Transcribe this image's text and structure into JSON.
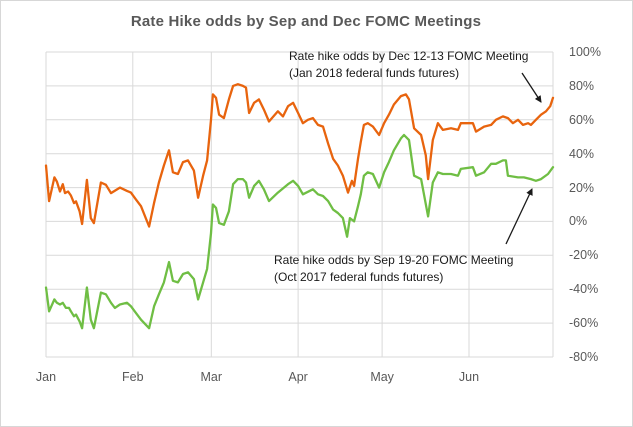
{
  "title": "Rate Hike odds by Sep and Dec FOMC Meetings",
  "chart_data": {
    "type": "line",
    "title": "Rate Hike odds by Sep and Dec FOMC Meetings",
    "xlabel": "",
    "ylabel": "",
    "grid": true,
    "legend": "none (series labeled by arrow annotations)",
    "colors": {
      "grid": "#d9d9d9",
      "axis_text": "#595959",
      "title_text": "#595959",
      "annotation_text": "#1a1a1a"
    },
    "x_axis": {
      "unit": "days from Jan 1",
      "xlim": [
        0,
        181
      ],
      "ticks": [
        {
          "label": "Jan",
          "day": 0
        },
        {
          "label": "Feb",
          "day": 31
        },
        {
          "label": "Mar",
          "day": 59
        },
        {
          "label": "Apr",
          "day": 90
        },
        {
          "label": "May",
          "day": 120
        },
        {
          "label": "Jun",
          "day": 151
        }
      ]
    },
    "y_axis": {
      "side": "right",
      "ylim": [
        -80,
        100
      ],
      "ticks": [
        {
          "label": "100%",
          "value": 100
        },
        {
          "label": "80%",
          "value": 80
        },
        {
          "label": "60%",
          "value": 60
        },
        {
          "label": "40%",
          "value": 40
        },
        {
          "label": "20%",
          "value": 20
        },
        {
          "label": "0%",
          "value": 0
        },
        {
          "label": "-20%",
          "value": -20
        },
        {
          "label": "-40%",
          "value": -40
        },
        {
          "label": "-60%",
          "value": -60
        },
        {
          "label": "-80%",
          "value": -80
        }
      ]
    },
    "series": [
      {
        "name": "Rate hike odds by Dec 12-13 FOMC Meeting (Jan 2018 federal funds futures)",
        "color": "#e8640e",
        "points": [
          [
            0,
            33
          ],
          [
            1.1,
            12
          ],
          [
            3,
            26
          ],
          [
            3.9,
            23.5
          ],
          [
            5,
            17.7
          ],
          [
            6,
            22
          ],
          [
            6.8,
            16.7
          ],
          [
            7.9,
            17.7
          ],
          [
            8.9,
            15.3
          ],
          [
            10,
            10.8
          ],
          [
            10.7,
            11.8
          ],
          [
            12,
            6
          ],
          [
            12.9,
            -1.5
          ],
          [
            14.6,
            24.5
          ],
          [
            16,
            2
          ],
          [
            17.1,
            -1
          ],
          [
            19.6,
            23
          ],
          [
            21.4,
            21.6
          ],
          [
            23.2,
            16.7
          ],
          [
            26.4,
            20
          ],
          [
            28.9,
            18
          ],
          [
            30.3,
            17
          ],
          [
            32.1,
            13
          ],
          [
            33.9,
            9
          ],
          [
            36.8,
            -3
          ],
          [
            38.6,
            11
          ],
          [
            40.3,
            23
          ],
          [
            42.1,
            33
          ],
          [
            43.9,
            42
          ],
          [
            45.3,
            29
          ],
          [
            47.1,
            28
          ],
          [
            48.9,
            35
          ],
          [
            50.7,
            36
          ],
          [
            52.8,
            30
          ],
          [
            54.3,
            14
          ],
          [
            56.1,
            27
          ],
          [
            57.5,
            36
          ],
          [
            58.9,
            60
          ],
          [
            59.6,
            75
          ],
          [
            60.7,
            73
          ],
          [
            61.8,
            63
          ],
          [
            63.5,
            61
          ],
          [
            65.3,
            72
          ],
          [
            66.8,
            80
          ],
          [
            68.5,
            81
          ],
          [
            70.3,
            80
          ],
          [
            71.4,
            79
          ],
          [
            72.5,
            64
          ],
          [
            74.3,
            70
          ],
          [
            76,
            72
          ],
          [
            77.8,
            66
          ],
          [
            79.6,
            59
          ],
          [
            82.8,
            65
          ],
          [
            84.6,
            62
          ],
          [
            86.4,
            68
          ],
          [
            88.2,
            70
          ],
          [
            90,
            64
          ],
          [
            91.7,
            58
          ],
          [
            93.5,
            60
          ],
          [
            95.3,
            61
          ],
          [
            97.1,
            57
          ],
          [
            98.9,
            56
          ],
          [
            100.7,
            46
          ],
          [
            102.5,
            37
          ],
          [
            104.2,
            33
          ],
          [
            106,
            27
          ],
          [
            107.8,
            17
          ],
          [
            109.2,
            24
          ],
          [
            110,
            21
          ],
          [
            111.4,
            37
          ],
          [
            112.4,
            47
          ],
          [
            113.5,
            57
          ],
          [
            114.9,
            58
          ],
          [
            116.7,
            56
          ],
          [
            118.9,
            51
          ],
          [
            120.7,
            58
          ],
          [
            122.4,
            63
          ],
          [
            124.2,
            69
          ],
          [
            126.7,
            74
          ],
          [
            128.5,
            75
          ],
          [
            129.6,
            72
          ],
          [
            131.4,
            55
          ],
          [
            133.9,
            51
          ],
          [
            135.6,
            39
          ],
          [
            136.4,
            25
          ],
          [
            138.1,
            48
          ],
          [
            139.9,
            58
          ],
          [
            141.7,
            54
          ],
          [
            144.6,
            55
          ],
          [
            147.1,
            54
          ],
          [
            148.1,
            58
          ],
          [
            152.4,
            58
          ],
          [
            153.5,
            53
          ],
          [
            156.4,
            56
          ],
          [
            158.9,
            57
          ],
          [
            160.6,
            60
          ],
          [
            163.1,
            62
          ],
          [
            164.9,
            61
          ],
          [
            166.7,
            58
          ],
          [
            168.5,
            60
          ],
          [
            170.3,
            57
          ],
          [
            172.1,
            58
          ],
          [
            173.1,
            57
          ],
          [
            174.9,
            60
          ],
          [
            176.7,
            63
          ],
          [
            178.5,
            65
          ],
          [
            180,
            68
          ],
          [
            181,
            73
          ]
        ]
      },
      {
        "name": "Rate hike odds by Sep 19-20 FOMC Meeting (Oct 2017 federal funds futures)",
        "color": "#6fbe44",
        "points": [
          [
            0,
            -39
          ],
          [
            1.1,
            -53
          ],
          [
            3,
            -46
          ],
          [
            3.9,
            -48
          ],
          [
            5,
            -49
          ],
          [
            6,
            -48
          ],
          [
            7.1,
            -51
          ],
          [
            8.2,
            -51
          ],
          [
            8.9,
            -53
          ],
          [
            10,
            -56
          ],
          [
            10.7,
            -55
          ],
          [
            12,
            -59
          ],
          [
            12.9,
            -63
          ],
          [
            14.6,
            -39
          ],
          [
            16,
            -58
          ],
          [
            17.1,
            -63
          ],
          [
            19.6,
            -42
          ],
          [
            21.4,
            -43
          ],
          [
            23.2,
            -48
          ],
          [
            24.6,
            -51
          ],
          [
            26.4,
            -49
          ],
          [
            28.9,
            -48
          ],
          [
            30.3,
            -50
          ],
          [
            32.1,
            -54
          ],
          [
            33.9,
            -58
          ],
          [
            36.8,
            -63
          ],
          [
            38.6,
            -50
          ],
          [
            40.3,
            -43
          ],
          [
            42.1,
            -36
          ],
          [
            43.9,
            -24
          ],
          [
            45.3,
            -35
          ],
          [
            47.1,
            -36
          ],
          [
            48.9,
            -31
          ],
          [
            50.7,
            -30
          ],
          [
            52.8,
            -34
          ],
          [
            54.3,
            -46
          ],
          [
            56.1,
            -36
          ],
          [
            57.5,
            -28
          ],
          [
            58.9,
            -7
          ],
          [
            59.6,
            10
          ],
          [
            60.7,
            8
          ],
          [
            61.8,
            -1
          ],
          [
            63.5,
            -2
          ],
          [
            65.3,
            6
          ],
          [
            66.8,
            22
          ],
          [
            68.5,
            25
          ],
          [
            70.3,
            25
          ],
          [
            71.4,
            23
          ],
          [
            72.5,
            14
          ],
          [
            74.3,
            21
          ],
          [
            76,
            24
          ],
          [
            77.8,
            19
          ],
          [
            79.6,
            12
          ],
          [
            82.8,
            17
          ],
          [
            86.4,
            22
          ],
          [
            88.2,
            24
          ],
          [
            90,
            21
          ],
          [
            91.7,
            16
          ],
          [
            95.3,
            19
          ],
          [
            97.1,
            16
          ],
          [
            98.9,
            15
          ],
          [
            100.7,
            12
          ],
          [
            102.5,
            7
          ],
          [
            104.2,
            5
          ],
          [
            106,
            2
          ],
          [
            107.5,
            -9
          ],
          [
            108.5,
            2
          ],
          [
            110,
            0
          ],
          [
            111.4,
            9
          ],
          [
            112.4,
            16
          ],
          [
            113.5,
            27
          ],
          [
            114.9,
            29
          ],
          [
            116.7,
            28
          ],
          [
            118.9,
            20
          ],
          [
            120.7,
            29
          ],
          [
            122.4,
            35
          ],
          [
            124.2,
            42
          ],
          [
            126.7,
            49
          ],
          [
            127.8,
            51
          ],
          [
            129.6,
            48
          ],
          [
            131.4,
            27
          ],
          [
            133.9,
            25
          ],
          [
            136.4,
            3
          ],
          [
            138.1,
            23
          ],
          [
            139.9,
            29
          ],
          [
            141.7,
            28
          ],
          [
            144.6,
            28
          ],
          [
            147.1,
            27
          ],
          [
            148.1,
            31
          ],
          [
            152.4,
            32
          ],
          [
            153.5,
            27
          ],
          [
            156.4,
            29
          ],
          [
            158.9,
            34
          ],
          [
            160.6,
            34
          ],
          [
            163.1,
            36
          ],
          [
            164.2,
            36
          ],
          [
            164.9,
            27
          ],
          [
            168.5,
            26
          ],
          [
            170.6,
            26
          ],
          [
            173.1,
            25
          ],
          [
            174.9,
            24
          ],
          [
            176.7,
            25
          ],
          [
            179.2,
            28
          ],
          [
            181,
            32
          ]
        ]
      }
    ],
    "annotations": [
      {
        "lines": [
          "Rate hike odds by Dec 12-13 FOMC Meeting",
          "(Jan 2018  federal funds futures)"
        ],
        "arrow": {
          "from": [
            521,
            72
          ],
          "to": [
            540,
            101
          ]
        }
      },
      {
        "lines": [
          "Rate hike odds by Sep 19-20 FOMC Meeting",
          "(Oct 2017  federal funds futures)"
        ],
        "arrow": {
          "from": [
            505,
            243
          ],
          "to": [
            531,
            188
          ]
        }
      }
    ]
  }
}
